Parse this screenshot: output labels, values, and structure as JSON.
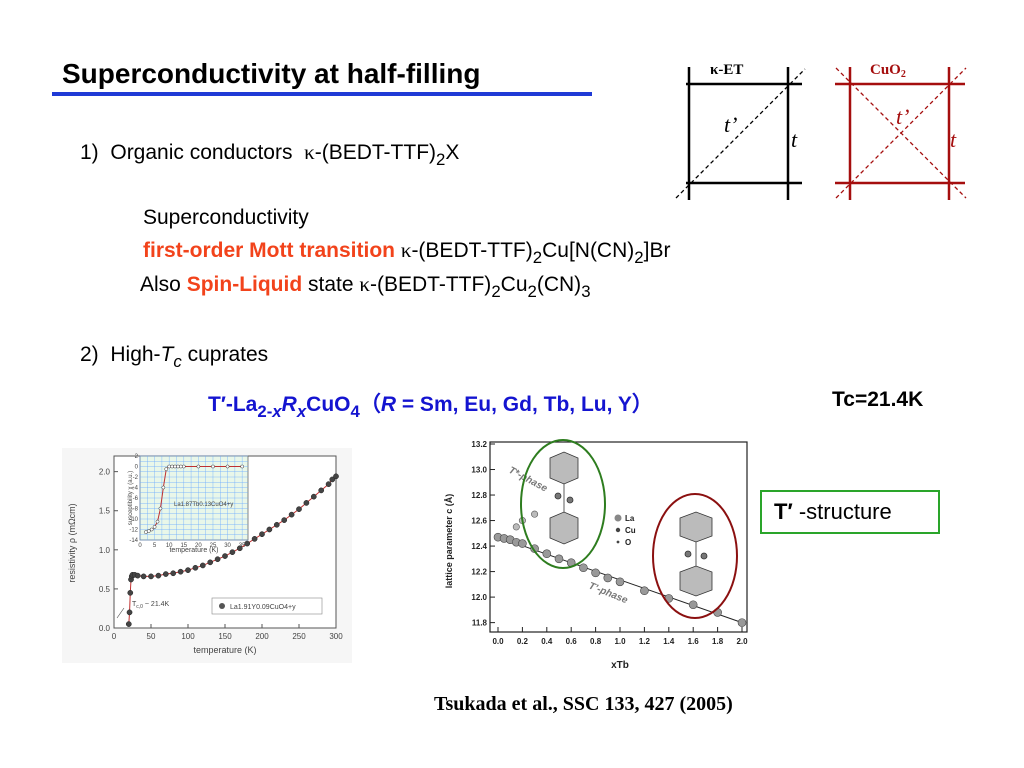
{
  "title": "Superconductivity at half-filling",
  "item1": {
    "num": "1)",
    "text": "Organic conductors",
    "kappa": "κ",
    "formula_pre": "-(BEDT-TTF)",
    "sub": "2",
    "formula_post": "X"
  },
  "sc_label": "Superconductivity",
  "line2": {
    "red": "first-order Mott transition",
    "kappa": "κ",
    "f1": "-(BEDT-TTF)",
    "s1": "2",
    "f2": "Cu[N(CN)",
    "s2": "2",
    "f3": "]Br"
  },
  "line3": {
    "pre": "Also",
    "red": "Spin-Liquid",
    "post": "state",
    "kappa": "κ",
    "f1": "-(BEDT-TTF)",
    "s1": "2",
    "f2": "Cu",
    "s2": "2",
    "f3": "(CN)",
    "s3": "3"
  },
  "item2": {
    "num": "2)",
    "text": "High-",
    "T": "T",
    "c": "c",
    "post": "cuprates"
  },
  "formula": {
    "a": "T′-La",
    "b": "2-",
    "c": "x",
    "d": "R",
    "e": "x",
    "f": "CuO",
    "g": "4",
    "h": "（",
    "i": "R",
    "j": " = Sm, Eu, Gd, Tb, Lu, Y）"
  },
  "tc_value": "Tc=21.4K",
  "lattice_labels": {
    "ket": "κ-ET",
    "cuo2": "CuO",
    "cuo2_sub": "2",
    "t_prime": "t’",
    "t": "t"
  },
  "colors": {
    "title_rule": "#1f3ad6",
    "red": "#f2431b",
    "blue": "#1414d0",
    "dark_red": "#a50e0e",
    "green": "#2aa52a"
  },
  "t_structure": {
    "T": "T′",
    "label": " -structure"
  },
  "citation": "Tsukada et al., SSC 133,  427 (2005)",
  "left_plot": {
    "ylabel": "resistivity ρ (mΩcm)",
    "xlabel": "temperature (K)",
    "yticks": [
      "0.0",
      "0.5",
      "1.0",
      "1.5",
      "2.0"
    ],
    "xticks": [
      "0",
      "50",
      "100",
      "150",
      "200",
      "250",
      "300"
    ],
    "tc_annot": "T",
    "tc_annot_sub": "c,0",
    "tc_annot_val": " ~ 21.4K",
    "legend": "La1.91Y0.09CuO4+y",
    "inset_ylabel": "susceptibility χ (a.u.)",
    "inset_xlabel": "temperature (K)",
    "inset_yticks": [
      "2",
      "0",
      "-2",
      "-4",
      "-6",
      "-8",
      "-10",
      "-12",
      "-14"
    ],
    "inset_xticks": [
      "0",
      "5",
      "10",
      "15",
      "20",
      "25",
      "30",
      "35"
    ],
    "inset_legend": "La1.87Tb0.13CuO4+y"
  },
  "right_plot": {
    "ylabel": "lattice parameter c (Å)",
    "xlabel": "xTb",
    "yticks": [
      "13.2",
      "13.0",
      "12.8",
      "12.6",
      "12.4",
      "12.2",
      "12.0",
      "11.8"
    ],
    "xticks": [
      "0.0",
      "0.2",
      "0.4",
      "0.6",
      "0.8",
      "1.0",
      "1.2",
      "1.4",
      "1.6",
      "1.8",
      "2.0"
    ],
    "phase_top": "T*-phase",
    "phase_bottom": "T’-phase",
    "legend": [
      "La",
      "Cu",
      "O"
    ]
  },
  "chart_data": [
    {
      "type": "scatter",
      "title": "",
      "xlabel": "temperature (K)",
      "ylabel": "resistivity ρ (mΩcm)",
      "xlim": [
        0,
        300
      ],
      "ylim": [
        0,
        2.2
      ],
      "series": [
        {
          "name": "La1.91Y0.09CuO4+y",
          "x": [
            20,
            21,
            22,
            23,
            24,
            25,
            28,
            32,
            40,
            50,
            60,
            70,
            80,
            90,
            100,
            110,
            120,
            130,
            140,
            150,
            160,
            170,
            180,
            190,
            200,
            210,
            220,
            230,
            240,
            250,
            260,
            270,
            280,
            290,
            295,
            300
          ],
          "y": [
            0.05,
            0.2,
            0.45,
            0.62,
            0.66,
            0.68,
            0.68,
            0.67,
            0.66,
            0.66,
            0.67,
            0.69,
            0.7,
            0.72,
            0.74,
            0.77,
            0.8,
            0.84,
            0.88,
            0.92,
            0.97,
            1.02,
            1.08,
            1.14,
            1.2,
            1.26,
            1.32,
            1.38,
            1.45,
            1.52,
            1.6,
            1.68,
            1.76,
            1.84,
            1.9,
            1.94
          ]
        }
      ],
      "inset": {
        "xlabel": "temperature (K)",
        "ylabel": "susceptibility χ (a.u.)",
        "xlim": [
          0,
          37
        ],
        "ylim": [
          -14,
          2
        ],
        "series": [
          {
            "name": "La1.87Tb0.13CuO4+y",
            "x": [
              2,
              3,
              4,
              5,
              6,
              7,
              8,
              9,
              10,
              11,
              12,
              13,
              14,
              15,
              20,
              25,
              30,
              35
            ],
            "y": [
              -12.5,
              -12.3,
              -12,
              -11.5,
              -10.5,
              -8,
              -4,
              -0.5,
              0,
              0,
              0,
              0,
              0,
              0,
              0,
              0,
              0,
              0
            ]
          }
        ]
      }
    },
    {
      "type": "scatter",
      "title": "",
      "xlabel": "xTb",
      "ylabel": "lattice parameter c (Å)",
      "xlim": [
        0,
        2.0
      ],
      "ylim": [
        11.75,
        13.2
      ],
      "series": [
        {
          "name": "T’-phase",
          "x": [
            0.0,
            0.05,
            0.1,
            0.15,
            0.2,
            0.3,
            0.4,
            0.5,
            0.6,
            0.7,
            0.8,
            0.9,
            1.0,
            1.2,
            1.4,
            1.6,
            1.8,
            2.0
          ],
          "y": [
            12.47,
            12.46,
            12.45,
            12.43,
            12.42,
            12.38,
            12.34,
            12.3,
            12.27,
            12.23,
            12.19,
            12.15,
            12.12,
            12.05,
            11.99,
            11.94,
            11.88,
            11.8
          ]
        },
        {
          "name": "T*-phase",
          "x": [
            0.15,
            0.2,
            0.3
          ],
          "y": [
            12.55,
            12.6,
            12.65
          ]
        }
      ]
    }
  ]
}
